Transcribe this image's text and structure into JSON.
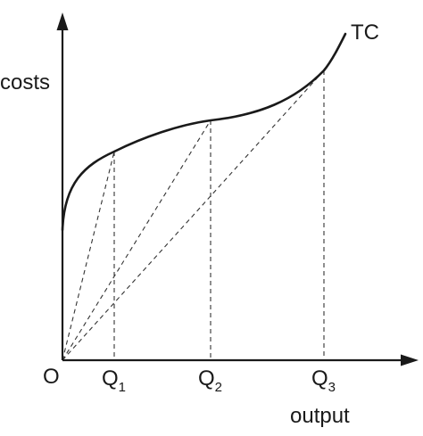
{
  "diagram": {
    "y_axis_label": "costs",
    "x_axis_label": "output",
    "origin_label": "O",
    "curve_label": "TC",
    "points": [
      {
        "label": "Q",
        "subscript": "1"
      },
      {
        "label": "Q",
        "subscript": "2"
      },
      {
        "label": "Q",
        "subscript": "3"
      }
    ],
    "line_color": "#1a1a1a"
  }
}
